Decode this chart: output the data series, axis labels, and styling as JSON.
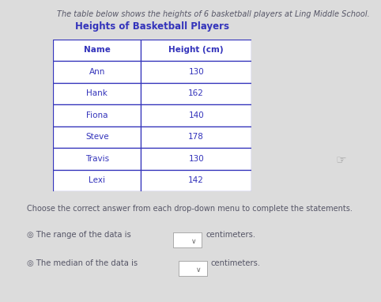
{
  "title_text": "The table below shows the heights of 6 basketball players at Ling Middle School.",
  "table_title": "Heights of Basketball Players",
  "col_headers": [
    "Name",
    "Height (cm)"
  ],
  "rows": [
    [
      "Ann",
      "130"
    ],
    [
      "Hank",
      "162"
    ],
    [
      "Fiona",
      "140"
    ],
    [
      "Steve",
      "178"
    ],
    [
      "Travis",
      "130"
    ],
    [
      "Lexi",
      "142"
    ]
  ],
  "instruction": "Choose the correct answer from each drop-down menu to complete the statements.",
  "statement1": "◎ The range of the data is",
  "statement2": "◎ The median of the data is",
  "dropdown_suffix": "centimeters.",
  "bg_color": "#dcdcdc",
  "table_text_color": "#3333bb",
  "table_border_color": "#3333bb",
  "title_color": "#555566",
  "instruction_color": "#555566",
  "statement_color": "#555566",
  "fig_width": 4.82,
  "fig_height": 3.82,
  "dpi": 100
}
